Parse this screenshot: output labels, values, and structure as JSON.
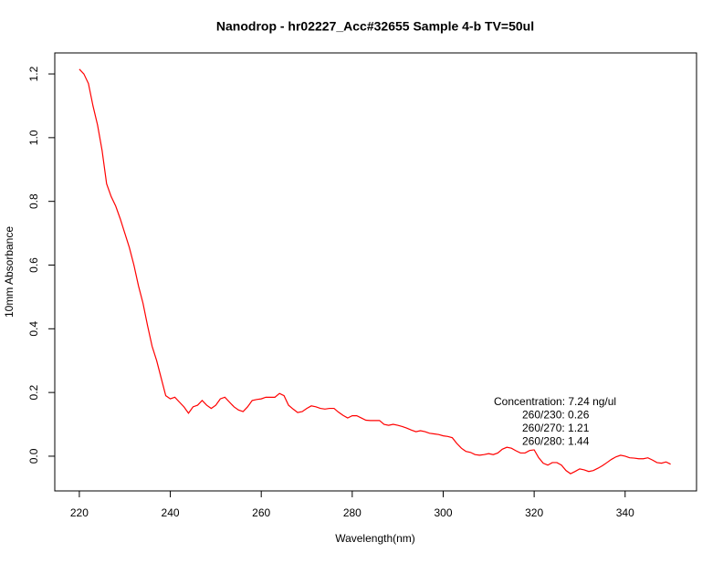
{
  "chart_data": {
    "type": "line",
    "title": "Nanodrop - hr02227_Acc#32655 Sample 4-b TV=50ul",
    "x_label": "Wavelength(nm)",
    "y_label": "10mm Absorbance",
    "annotations": [
      "Concentration: 7.24 ng/ul",
      "260/230: 0.26",
      "260/270: 1.21",
      "260/280: 1.44"
    ],
    "x": [
      220,
      221,
      222,
      223,
      224,
      225,
      226,
      227,
      228,
      229,
      230,
      231,
      232,
      233,
      234,
      235,
      236,
      237,
      238,
      239,
      240,
      241,
      242,
      243,
      244,
      245,
      246,
      247,
      248,
      249,
      250,
      251,
      252,
      253,
      254,
      255,
      256,
      257,
      258,
      259,
      260,
      261,
      262,
      263,
      264,
      265,
      266,
      267,
      268,
      269,
      270,
      271,
      272,
      273,
      274,
      275,
      276,
      277,
      278,
      279,
      280,
      281,
      282,
      283,
      284,
      285,
      286,
      287,
      288,
      289,
      290,
      291,
      292,
      293,
      294,
      295,
      296,
      297,
      298,
      299,
      300,
      301,
      302,
      303,
      304,
      305,
      306,
      307,
      308,
      309,
      310,
      311,
      312,
      313,
      314,
      315,
      316,
      317,
      318,
      319,
      320,
      321,
      322,
      323,
      324,
      325,
      326,
      327,
      328,
      329,
      330,
      331,
      332,
      333,
      334,
      335,
      336,
      337,
      338,
      339,
      340,
      341,
      342,
      343,
      344,
      345,
      346,
      347,
      348,
      349,
      350
    ],
    "series": [
      {
        "color": "#ff0000",
        "values": [
          1.215,
          1.2,
          1.17,
          1.1,
          1.04,
          0.96,
          0.855,
          0.815,
          0.785,
          0.745,
          0.7,
          0.655,
          0.6,
          0.535,
          0.48,
          0.41,
          0.345,
          0.3,
          0.245,
          0.19,
          0.18,
          0.185,
          0.17,
          0.155,
          0.135,
          0.155,
          0.16,
          0.175,
          0.16,
          0.15,
          0.16,
          0.18,
          0.185,
          0.17,
          0.155,
          0.145,
          0.14,
          0.155,
          0.175,
          0.178,
          0.18,
          0.185,
          0.185,
          0.185,
          0.197,
          0.19,
          0.16,
          0.148,
          0.137,
          0.14,
          0.15,
          0.158,
          0.155,
          0.15,
          0.148,
          0.15,
          0.15,
          0.138,
          0.128,
          0.12,
          0.127,
          0.127,
          0.12,
          0.113,
          0.112,
          0.112,
          0.112,
          0.1,
          0.097,
          0.1,
          0.097,
          0.093,
          0.088,
          0.082,
          0.077,
          0.08,
          0.077,
          0.072,
          0.07,
          0.068,
          0.064,
          0.062,
          0.058,
          0.04,
          0.025,
          0.015,
          0.012,
          0.005,
          0.003,
          0.005,
          0.008,
          0.005,
          0.01,
          0.022,
          0.028,
          0.025,
          0.017,
          0.01,
          0.01,
          0.018,
          0.02,
          -0.005,
          -0.022,
          -0.028,
          -0.02,
          -0.02,
          -0.028,
          -0.045,
          -0.055,
          -0.048,
          -0.04,
          -0.043,
          -0.048,
          -0.045,
          -0.038,
          -0.03,
          -0.02,
          -0.01,
          -0.002,
          0.003,
          0,
          -0.005,
          -0.006,
          -0.008,
          -0.008,
          -0.005,
          -0.012,
          -0.02,
          -0.022,
          -0.018,
          -0.025
        ]
      }
    ],
    "xlim": [
      214.6,
      355.7
    ],
    "ylim": [
      -0.109,
      1.266
    ],
    "xticks": [
      220,
      240,
      260,
      280,
      300,
      320,
      340
    ],
    "yticks": [
      {
        "value": 0,
        "label": "0.0"
      },
      0.2,
      0.4,
      0.6,
      0.8,
      {
        "value": 1,
        "label": "1.0"
      },
      1.2
    ]
  }
}
